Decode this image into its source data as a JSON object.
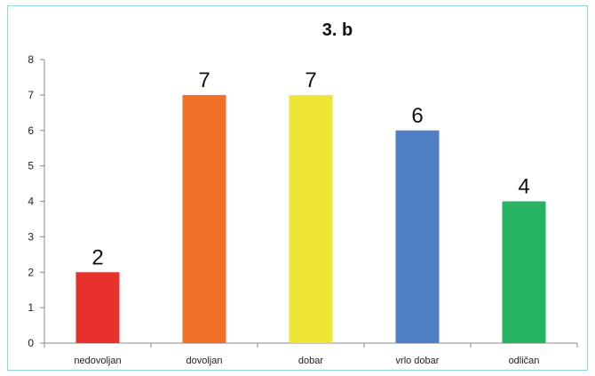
{
  "chart_data": {
    "type": "bar",
    "title": "3. b",
    "xlabel": "",
    "ylabel": "",
    "categories": [
      "nedovoljan",
      "dovoljan",
      "dobar",
      "vrlo dobar",
      "odličan"
    ],
    "values": [
      2,
      7,
      7,
      6,
      4
    ],
    "data_labels": [
      "2",
      "7",
      "7",
      "6",
      "4"
    ],
    "colors": [
      "#e8312c",
      "#f07028",
      "#eee537",
      "#4f7fc4",
      "#27b462"
    ],
    "ylim": [
      0,
      8
    ],
    "yticks": [
      "0",
      "1",
      "2",
      "3",
      "4",
      "5",
      "6",
      "7",
      "8"
    ],
    "grid": false,
    "legend": "none"
  }
}
